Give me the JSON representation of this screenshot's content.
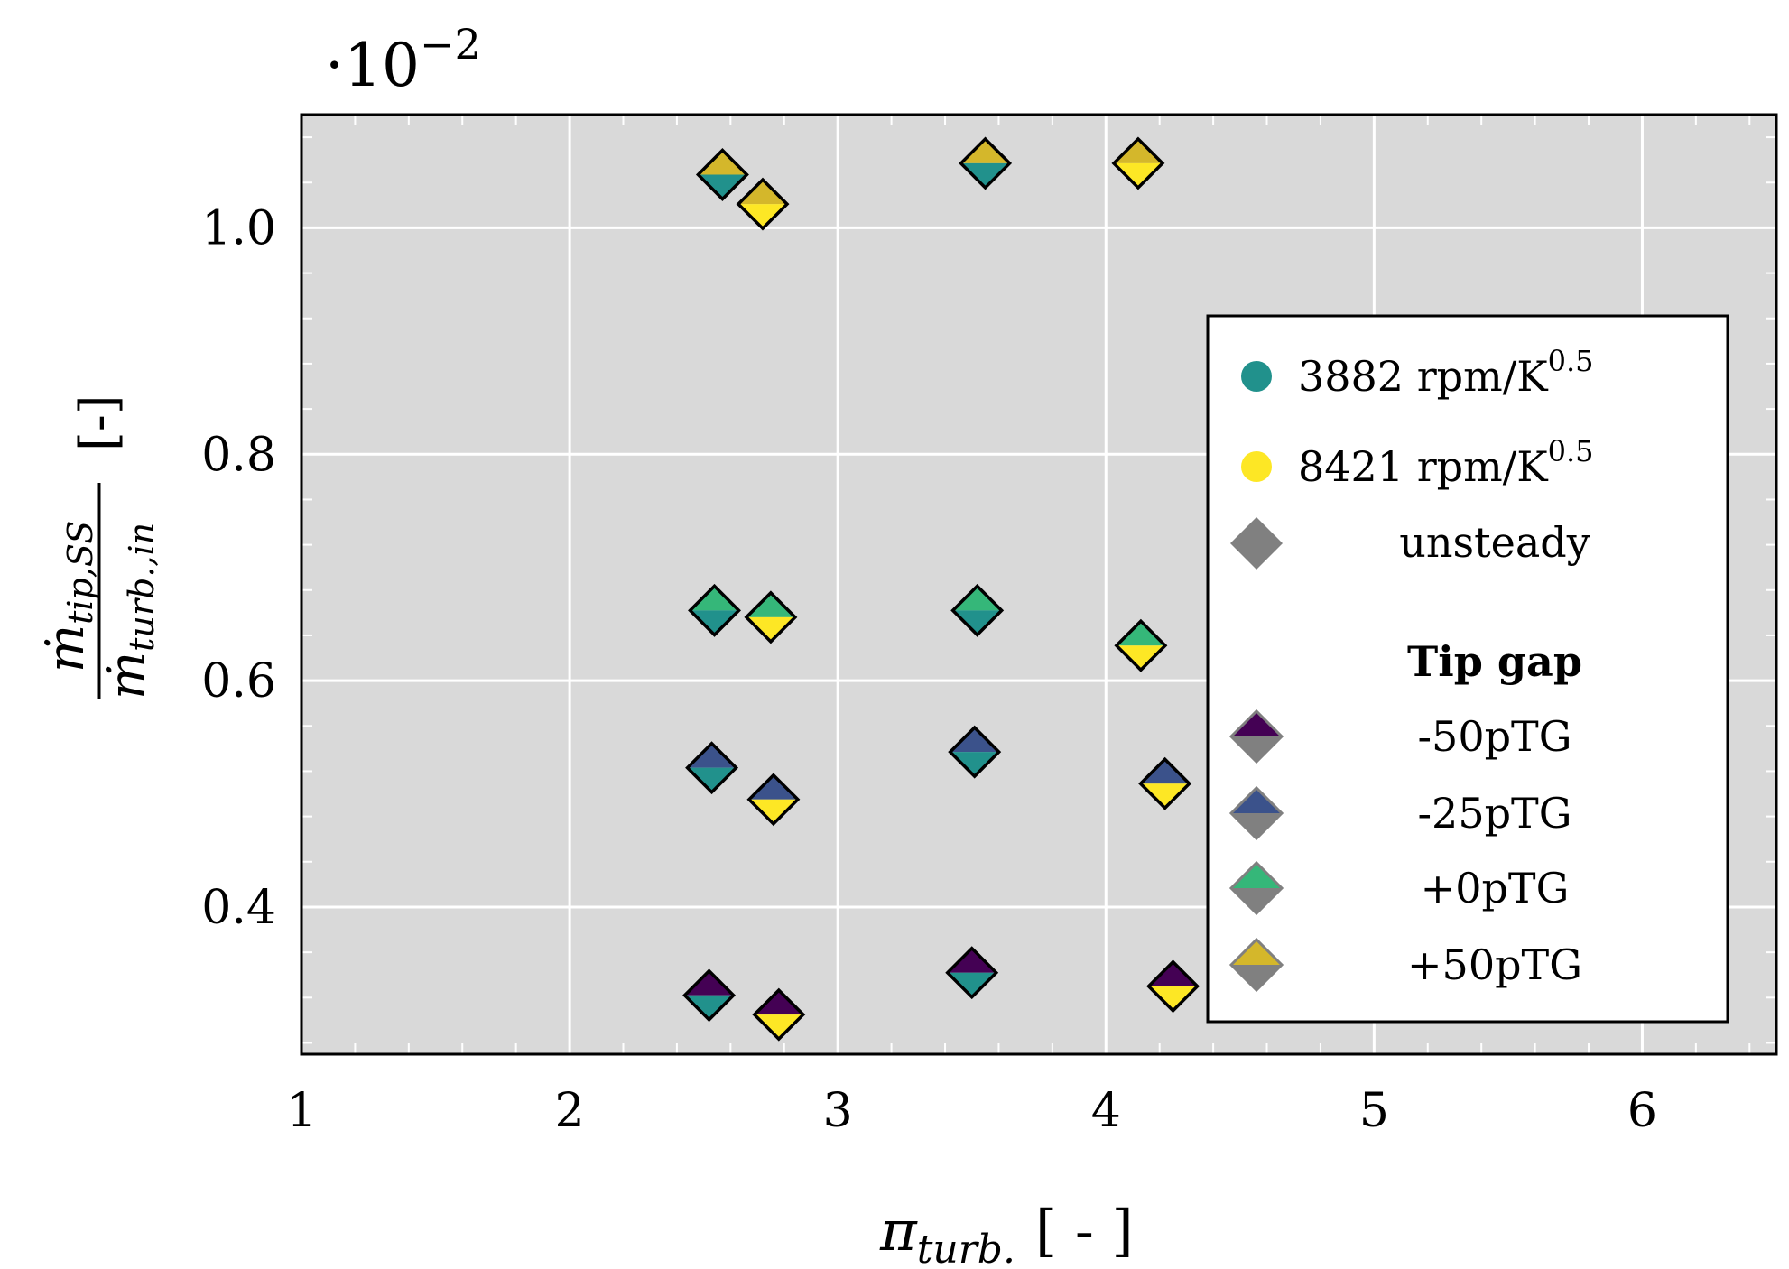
{
  "chart_data": {
    "type": "scatter",
    "title": "",
    "exponent_label": "·10",
    "exponent_power": "−2",
    "xlabel": {
      "symbol": "π",
      "subscript": "turb.",
      "unit": "[ - ]"
    },
    "ylabel": {
      "numerator": "ṁ",
      "numerator_sub": "tip,SS",
      "denominator": "ṁ",
      "denominator_sub": "turb.,in",
      "unit": "[-]"
    },
    "xlim": [
      1,
      6.5
    ],
    "ylim": [
      0.27,
      1.1
    ],
    "x_ticks": [
      1,
      2,
      3,
      4,
      5,
      6
    ],
    "x_tick_labels": [
      "1",
      "2",
      "3",
      "4",
      "5",
      "6"
    ],
    "y_ticks": [
      0.4,
      0.6,
      0.8,
      1.0
    ],
    "y_tick_labels": [
      "0.4",
      "0.6",
      "0.8",
      "1.0"
    ],
    "grid": true,
    "legend_position": "right",
    "colors": {
      "speed_3882": "#21918c",
      "speed_8421": "#fde725",
      "gap_-50pTG": "#440154",
      "gap_-25pTG": "#3b528b",
      "gap_+0pTG": "#35b779",
      "gap_+50pTG": "#d4b72b",
      "unsteady": "#808080",
      "background": "#d9d9d9"
    },
    "series": [
      {
        "name": "-50pTG",
        "points": [
          {
            "x": 2.52,
            "y": 0.322,
            "speed": "3882"
          },
          {
            "x": 2.78,
            "y": 0.305,
            "speed": "8421"
          },
          {
            "x": 3.5,
            "y": 0.342,
            "speed": "3882"
          },
          {
            "x": 4.25,
            "y": 0.33,
            "speed": "8421"
          }
        ]
      },
      {
        "name": "-25pTG",
        "points": [
          {
            "x": 2.53,
            "y": 0.523,
            "speed": "3882"
          },
          {
            "x": 2.76,
            "y": 0.495,
            "speed": "8421"
          },
          {
            "x": 3.51,
            "y": 0.537,
            "speed": "3882"
          },
          {
            "x": 4.22,
            "y": 0.509,
            "speed": "8421"
          }
        ]
      },
      {
        "name": "+0pTG",
        "points": [
          {
            "x": 2.54,
            "y": 0.662,
            "speed": "3882"
          },
          {
            "x": 2.75,
            "y": 0.656,
            "speed": "8421"
          },
          {
            "x": 3.52,
            "y": 0.662,
            "speed": "3882"
          },
          {
            "x": 4.13,
            "y": 0.631,
            "speed": "8421"
          }
        ]
      },
      {
        "name": "+50pTG",
        "points": [
          {
            "x": 2.57,
            "y": 1.047,
            "speed": "3882"
          },
          {
            "x": 2.72,
            "y": 1.021,
            "speed": "8421"
          },
          {
            "x": 3.55,
            "y": 1.057,
            "speed": "3882"
          },
          {
            "x": 4.12,
            "y": 1.057,
            "speed": "8421"
          }
        ]
      }
    ],
    "legend": {
      "speed_entries": [
        {
          "label": "3882 rpm/K",
          "power": "0.5",
          "color_key": "speed_3882"
        },
        {
          "label": "8421 rpm/K",
          "power": "0.5",
          "color_key": "speed_8421"
        }
      ],
      "unsteady_label": "unsteady",
      "group_title": "Tip gap",
      "gap_entries": [
        {
          "label": "-50pTG",
          "color_key": "gap_-50pTG"
        },
        {
          "label": "-25pTG",
          "color_key": "gap_-25pTG"
        },
        {
          "label": "+0pTG",
          "color_key": "gap_+0pTG"
        },
        {
          "label": "+50pTG",
          "color_key": "gap_+50pTG"
        }
      ]
    }
  }
}
